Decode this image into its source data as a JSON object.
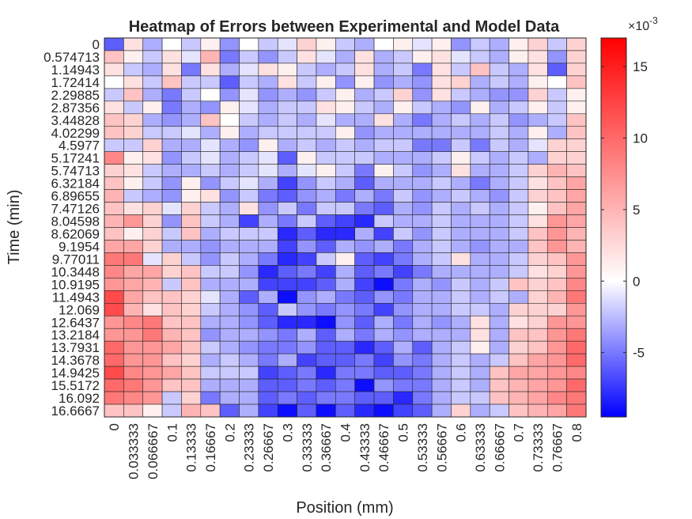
{
  "chart_data": {
    "type": "heatmap",
    "title": "Heatmap of Errors between Experimental and Model Data",
    "xlabel": "Position (mm)",
    "ylabel": "Time (min)",
    "x_ticks": [
      "0",
      "0.033333",
      "0.066667",
      "0.1",
      "0.13333",
      "0.16667",
      "0.2",
      "0.23333",
      "0.26667",
      "0.3",
      "0.33333",
      "0.36667",
      "0.4",
      "0.43333",
      "0.46667",
      "0.5",
      "0.53333",
      "0.56667",
      "0.6",
      "0.63333",
      "0.66667",
      "0.7",
      "0.73333",
      "0.76667",
      "0.8"
    ],
    "y_ticks": [
      "0",
      "0.574713",
      "1.14943",
      "1.72414",
      "2.29885",
      "2.87356",
      "3.44828",
      "4.02299",
      "4.5977",
      "5.17241",
      "5.74713",
      "6.32184",
      "6.89655",
      "7.47126",
      "8.04598",
      "8.62069",
      "9.1954",
      "9.77011",
      "10.3448",
      "10.9195",
      "11.4943",
      "12.069",
      "12.6437",
      "13.2184",
      "13.7931",
      "14.3678",
      "14.9425",
      "15.5172",
      "16.092",
      "16.6667"
    ],
    "colorbar": {
      "exponent_label": "×10",
      "exponent": "-3",
      "ticks": [
        "-5",
        "0",
        "5",
        "10",
        "15"
      ],
      "tick_values": [
        -5,
        0,
        5,
        10,
        15
      ],
      "range": [
        -9.5,
        17
      ]
    },
    "colormap": {
      "low": "#0000ff",
      "mid": "#ffffff",
      "high": "#ff0000"
    },
    "values": [
      [
        -6,
        2,
        -3,
        0,
        -2,
        1,
        -4,
        0,
        -2,
        -1,
        3,
        1,
        -2,
        -3,
        0,
        1,
        -1,
        1,
        -4,
        -2,
        -3,
        1,
        3,
        -2,
        3
      ],
      [
        4,
        1,
        -2,
        2,
        -1,
        5,
        -5,
        -2,
        -4,
        -2,
        2,
        -1,
        -3,
        2,
        -3,
        -2,
        1,
        2,
        -1,
        -2,
        -3,
        1,
        2,
        -4,
        3
      ],
      [
        2,
        -2,
        -3,
        2,
        -5,
        2,
        -3,
        -1,
        2,
        1,
        -2,
        -3,
        -2,
        2,
        -3,
        -2,
        -5,
        2,
        -2,
        4,
        -2,
        -3,
        2,
        -6,
        3
      ],
      [
        0,
        2,
        -2,
        4,
        -2,
        -2,
        -6,
        -2,
        -3,
        2,
        -2,
        1,
        -4,
        1,
        -4,
        -3,
        -4,
        2,
        3,
        -3,
        -2,
        -3,
        1,
        0,
        4
      ],
      [
        -2,
        4,
        -3,
        -5,
        -2,
        0,
        -4,
        -1,
        -4,
        -3,
        -4,
        -2,
        1,
        -3,
        -2,
        3,
        -4,
        2,
        -2,
        -3,
        -4,
        -4,
        3,
        -2,
        1
      ],
      [
        2,
        -2,
        1,
        -5,
        -3,
        -4,
        1,
        -1,
        -3,
        -2,
        -2,
        2,
        1,
        -2,
        -3,
        1,
        -2,
        -3,
        -4,
        1,
        -3,
        -2,
        1,
        -2,
        1
      ],
      [
        4,
        3,
        -3,
        -4,
        -3,
        4,
        0,
        -2,
        -3,
        -2,
        -3,
        -1,
        -3,
        -3,
        2,
        -3,
        -5,
        -3,
        -2,
        -3,
        -2,
        -4,
        -3,
        -2,
        4
      ],
      [
        4,
        3,
        -2,
        -2,
        -1,
        -3,
        1,
        -3,
        -2,
        -2,
        -2,
        -2,
        1,
        -4,
        -3,
        -3,
        -3,
        -3,
        -3,
        -3,
        -2,
        -3,
        1,
        -3,
        4
      ],
      [
        -2,
        -2,
        3,
        -3,
        -3,
        -1,
        -3,
        -4,
        1,
        -3,
        -2,
        -3,
        -2,
        -3,
        -2,
        -2,
        -5,
        -5,
        -2,
        -5,
        -2,
        -3,
        -1,
        3,
        3
      ],
      [
        8,
        1,
        2,
        -4,
        -2,
        -1,
        -3,
        -2,
        -1,
        -6,
        1,
        -2,
        -2,
        -2,
        -3,
        -3,
        -3,
        -2,
        1,
        -2,
        -3,
        -2,
        -3,
        3,
        3
      ],
      [
        3,
        2,
        -2,
        -3,
        -3,
        -2,
        -3,
        -2,
        -1,
        -3,
        -1,
        1,
        -2,
        -5,
        1,
        -2,
        -4,
        -3,
        2,
        -3,
        -3,
        -2,
        3,
        5,
        4
      ],
      [
        4,
        1,
        -2,
        -4,
        1,
        -4,
        -2,
        -1,
        -3,
        -7,
        -4,
        -2,
        -3,
        -6,
        -3,
        -3,
        -3,
        -2,
        -3,
        -5,
        -3,
        -2,
        2,
        4,
        6
      ],
      [
        5,
        -2,
        -3,
        -4,
        1,
        2,
        -4,
        -2,
        -5,
        -6,
        -4,
        -3,
        -5,
        -3,
        -5,
        -2,
        -4,
        -3,
        -2,
        -3,
        -4,
        -2,
        3,
        4,
        6
      ],
      [
        4,
        2,
        3,
        -1,
        3,
        -2,
        -3,
        2,
        -4,
        -2,
        -5,
        -2,
        -2,
        -5,
        -6,
        -3,
        -4,
        -2,
        -3,
        -2,
        -3,
        -2,
        1,
        4,
        6
      ],
      [
        5,
        7,
        3,
        -4,
        4,
        -2,
        -3,
        -7,
        -3,
        -5,
        -2,
        -6,
        -7,
        -8,
        -2,
        -3,
        -3,
        -2,
        -3,
        -3,
        -3,
        -2,
        2,
        7,
        6
      ],
      [
        4,
        1,
        3,
        -2,
        4,
        -3,
        -2,
        -2,
        -2,
        -8,
        -6,
        -8,
        -8,
        -3,
        -7,
        -2,
        -4,
        -2,
        -3,
        -3,
        -3,
        -2,
        4,
        7,
        5
      ],
      [
        6,
        6,
        3,
        -3,
        -3,
        -4,
        -3,
        -3,
        -3,
        -7,
        -4,
        -6,
        -3,
        -4,
        -3,
        -5,
        -3,
        -2,
        -3,
        -4,
        -3,
        -3,
        4,
        7,
        5
      ],
      [
        9,
        9,
        -1,
        3,
        -2,
        -4,
        -2,
        -3,
        -5,
        -8,
        -7,
        -2,
        1,
        -6,
        -7,
        -5,
        -3,
        -2,
        2,
        -3,
        -3,
        -2,
        3,
        4,
        7
      ],
      [
        8,
        6,
        6,
        3,
        4,
        -2,
        -2,
        -4,
        -8,
        -6,
        -5,
        -7,
        -3,
        -6,
        -5,
        -7,
        -5,
        -3,
        -3,
        -3,
        -3,
        -2,
        2,
        3,
        7
      ],
      [
        7,
        6,
        5,
        -2,
        4,
        -3,
        -3,
        -3,
        -7,
        -7,
        -7,
        -6,
        -3,
        -7,
        -9,
        -5,
        -3,
        -4,
        -2,
        -3,
        -2,
        4,
        3,
        4,
        8
      ],
      [
        12,
        6,
        4,
        4,
        3,
        -1,
        -3,
        -6,
        -3,
        -9,
        -4,
        -3,
        -5,
        -6,
        -4,
        -5,
        -3,
        -3,
        -2,
        -3,
        -2,
        -3,
        3,
        5,
        9
      ],
      [
        12,
        5,
        2,
        4,
        3,
        -2,
        -3,
        -4,
        -6,
        -2,
        -4,
        -5,
        -4,
        -5,
        -7,
        -4,
        -3,
        -3,
        -2,
        -2,
        -3,
        3,
        3,
        3,
        7
      ],
      [
        7,
        8,
        9,
        4,
        4,
        -3,
        -3,
        -4,
        -6,
        -8,
        -8,
        -9,
        -4,
        -6,
        -3,
        -5,
        -3,
        -4,
        -3,
        2,
        -3,
        2,
        3,
        7,
        7
      ],
      [
        7,
        7,
        9,
        5,
        4,
        -4,
        -3,
        -3,
        -4,
        -5,
        -3,
        -6,
        -3,
        -5,
        -3,
        -4,
        -3,
        -3,
        -3,
        2,
        -3,
        4,
        4,
        7,
        9
      ],
      [
        10,
        7,
        7,
        6,
        4,
        -2,
        -3,
        -4,
        -5,
        -5,
        -4,
        -6,
        -6,
        -8,
        -6,
        -3,
        -6,
        -3,
        -2,
        1,
        -3,
        3,
        4,
        7,
        10
      ],
      [
        10,
        7,
        7,
        4,
        3,
        -3,
        -2,
        -3,
        -5,
        -3,
        -7,
        -6,
        -6,
        -5,
        -7,
        -4,
        -5,
        -3,
        -2,
        -3,
        -2,
        4,
        6,
        7,
        10
      ],
      [
        12,
        8,
        7,
        6,
        4,
        -2,
        -2,
        -2,
        -7,
        -6,
        -5,
        -8,
        -5,
        -5,
        -6,
        -6,
        -5,
        -3,
        -2,
        -3,
        4,
        6,
        6,
        7,
        8
      ],
      [
        10,
        9,
        7,
        4,
        4,
        -3,
        -3,
        -3,
        -6,
        -6,
        -5,
        -6,
        -5,
        -9,
        -4,
        -5,
        -5,
        -3,
        -2,
        -3,
        4,
        5,
        6,
        7,
        10
      ],
      [
        9,
        8,
        7,
        -2,
        3,
        -5,
        -3,
        -3,
        -6,
        -5,
        -6,
        -5,
        -5,
        -6,
        -6,
        -8,
        -5,
        -3,
        -2,
        -2,
        4,
        5,
        6,
        8,
        9
      ],
      [
        4,
        4,
        1,
        -2,
        5,
        4,
        -6,
        -3,
        -7,
        -9,
        -6,
        -9,
        -6,
        -8,
        -9,
        -7,
        -6,
        -3,
        3,
        -3,
        -2,
        4,
        5,
        6,
        9
      ]
    ]
  }
}
